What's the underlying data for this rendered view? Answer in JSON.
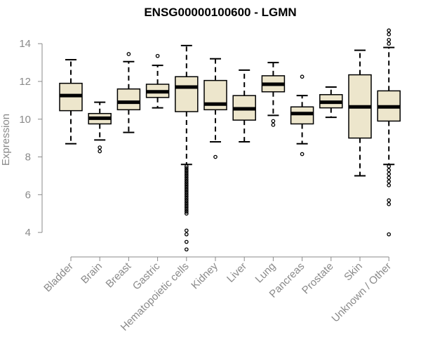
{
  "colors": {
    "box_fill": "#ede6cc",
    "box_stroke": "#000000",
    "median": "#000000",
    "axis": "#8a8a8a",
    "text": "#8a8a8a",
    "title": "#000000"
  },
  "chart_data": {
    "type": "boxplot",
    "title": "ENSG00000100600 - LGMN",
    "xlabel": "",
    "ylabel": "Expression",
    "ylim": [
      3,
      14.9
    ],
    "yticks": [
      4,
      6,
      8,
      10,
      12,
      14
    ],
    "grid": false,
    "categories": [
      "Bladder",
      "Brain",
      "Breast",
      "Gastric",
      "Hematopoietic cells",
      "Kidney",
      "Liver",
      "Lung",
      "Pancreas",
      "Prostate",
      "Skin",
      "Unknown / Other"
    ],
    "boxes": [
      {
        "category": "Bladder",
        "whisker_low": 8.7,
        "q1": 10.45,
        "median": 11.25,
        "q3": 11.9,
        "whisker_high": 13.15,
        "outliers": []
      },
      {
        "category": "Brain",
        "whisker_low": 8.9,
        "q1": 9.75,
        "median": 10.05,
        "q3": 10.3,
        "whisker_high": 10.9,
        "outliers": [
          8.5,
          8.3
        ]
      },
      {
        "category": "Breast",
        "whisker_low": 9.3,
        "q1": 10.5,
        "median": 10.9,
        "q3": 11.6,
        "whisker_high": 13.05,
        "outliers": [
          13.45
        ]
      },
      {
        "category": "Gastric",
        "whisker_low": 10.6,
        "q1": 11.15,
        "median": 11.45,
        "q3": 11.85,
        "whisker_high": 12.85,
        "outliers": [
          13.35
        ]
      },
      {
        "category": "Hematopoietic cells",
        "whisker_low": 7.6,
        "q1": 10.4,
        "median": 11.7,
        "q3": 12.25,
        "whisker_high": 13.9,
        "outliers": [
          7.5,
          7.4,
          7.3,
          7.2,
          7.1,
          7.0,
          6.9,
          6.8,
          6.7,
          6.6,
          6.5,
          6.4,
          6.3,
          6.2,
          6.1,
          6.0,
          5.9,
          5.8,
          5.7,
          5.6,
          5.5,
          5.4,
          5.3,
          5.2,
          5.1,
          5.0,
          4.1,
          3.9,
          3.5,
          3.1
        ]
      },
      {
        "category": "Kidney",
        "whisker_low": 8.8,
        "q1": 10.5,
        "median": 10.8,
        "q3": 12.05,
        "whisker_high": 13.2,
        "outliers": [
          8.0
        ]
      },
      {
        "category": "Liver",
        "whisker_low": 8.8,
        "q1": 9.95,
        "median": 10.55,
        "q3": 11.25,
        "whisker_high": 12.6,
        "outliers": []
      },
      {
        "category": "Lung",
        "whisker_low": 10.2,
        "q1": 11.45,
        "median": 11.85,
        "q3": 12.3,
        "whisker_high": 13.0,
        "outliers": [
          9.9,
          9.7
        ]
      },
      {
        "category": "Pancreas",
        "whisker_low": 8.7,
        "q1": 9.75,
        "median": 10.3,
        "q3": 10.65,
        "whisker_high": 11.25,
        "outliers": [
          12.25,
          8.15
        ]
      },
      {
        "category": "Prostate",
        "whisker_low": 10.1,
        "q1": 10.6,
        "median": 10.9,
        "q3": 11.3,
        "whisker_high": 11.7,
        "outliers": []
      },
      {
        "category": "Skin",
        "whisker_low": 7.0,
        "q1": 9.0,
        "median": 10.65,
        "q3": 12.35,
        "whisker_high": 13.65,
        "outliers": []
      },
      {
        "category": "Unknown / Other",
        "whisker_low": 7.6,
        "q1": 9.9,
        "median": 10.65,
        "q3": 11.5,
        "whisker_high": 13.8,
        "outliers": [
          14.7,
          14.5,
          14.2,
          14.0,
          7.5,
          7.3,
          7.1,
          6.9,
          6.7,
          6.5,
          5.7,
          5.5,
          3.9
        ]
      }
    ]
  }
}
